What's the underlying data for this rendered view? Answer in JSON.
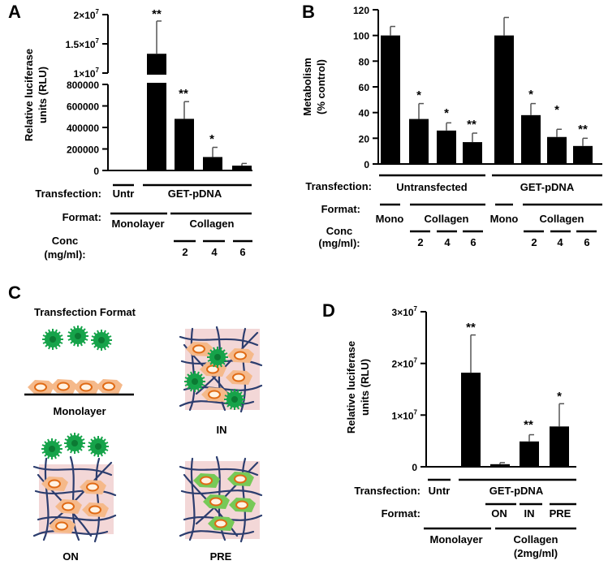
{
  "panels": {
    "A": {
      "letter": "A",
      "ylabel_line1": "Relative luciferase",
      "ylabel_line2": "units (RLU)",
      "upper_ticks": [
        {
          "base": "2×10",
          "exp": "7"
        },
        {
          "base": "1.5×10",
          "exp": "7"
        },
        {
          "base": "1×10",
          "exp": "7"
        }
      ],
      "lower_ticks": [
        "800000",
        "600000",
        "400000",
        "200000",
        "0"
      ],
      "stars": [
        "**",
        "**",
        "*"
      ],
      "rows": {
        "transfection": {
          "label": "Transfection:",
          "untr": "Untr",
          "get": "GET-pDNA"
        },
        "format": {
          "label": "Format:",
          "mono": "Monolayer",
          "coll": "Collagen"
        },
        "conc": {
          "label1": "Conc",
          "label2": "(mg/ml):",
          "values": [
            "2",
            "4",
            "6"
          ]
        }
      }
    },
    "B": {
      "letter": "B",
      "ylabel_line1": "Metabolism",
      "ylabel_line2": "(% control)",
      "ticks": [
        "120",
        "100",
        "80",
        "60",
        "40",
        "20",
        "0"
      ],
      "stars": [
        "*",
        "*",
        "**",
        "*",
        "*",
        "**"
      ],
      "rows": {
        "transfection": {
          "label": "Transfection:",
          "untransfected": "Untransfected",
          "get": "GET-pDNA"
        },
        "format": {
          "label": "Format:",
          "mono1": "Mono",
          "coll1": "Collagen",
          "mono2": "Mono",
          "coll2": "Collagen"
        },
        "conc": {
          "label1": "Conc",
          "label2": "(mg/ml):",
          "values": [
            "2",
            "4",
            "6",
            "2",
            "4",
            "6"
          ]
        }
      }
    },
    "C": {
      "letter": "C",
      "title": "Transfection Format",
      "labels": {
        "monolayer": "Monolayer",
        "in": "IN",
        "on": "ON",
        "pre": "PRE"
      }
    },
    "D": {
      "letter": "D",
      "ylabel_line1": "Relative luciferase",
      "ylabel_line2": "units (RLU)",
      "ticks": [
        {
          "base": "3×10",
          "exp": "7"
        },
        {
          "base": "2×10",
          "exp": "7"
        },
        {
          "base": "1×10",
          "exp": "7"
        },
        {
          "base": "0",
          "exp": ""
        }
      ],
      "stars": [
        "**",
        "**",
        "*"
      ],
      "rows": {
        "transfection": {
          "label": "Transfection:",
          "untr": "Untr",
          "get": "GET-pDNA"
        },
        "format": {
          "label": "Format:",
          "on": "ON",
          "in": "IN",
          "pre": "PRE"
        },
        "culture": {
          "mono": "Monolayer",
          "coll1": "Collagen",
          "coll2": "(2mg/ml)"
        }
      }
    }
  },
  "chart_data": [
    {
      "panel": "A",
      "type": "bar",
      "ylabel": "Relative luciferase units (RLU)",
      "broken_axis": true,
      "ylim_lower": [
        0,
        800000
      ],
      "ylim_upper": [
        10000000,
        20000000
      ],
      "categories": [
        "Untr Monolayer",
        "GET-pDNA Monolayer",
        "GET-pDNA Collagen 2",
        "GET-pDNA Collagen 4",
        "GET-pDNA Collagen 6"
      ],
      "values": [
        0,
        13300000,
        480000,
        125000,
        45000
      ],
      "errors": [
        0,
        5600000,
        160000,
        90000,
        20000
      ],
      "significance": [
        "",
        "**",
        "**",
        "*",
        ""
      ]
    },
    {
      "panel": "B",
      "type": "bar",
      "ylabel": "Metabolism (% control)",
      "ylim": [
        0,
        120
      ],
      "categories": [
        "Untransfected Mono",
        "Untransfected Collagen 2",
        "Untransfected Collagen 4",
        "Untransfected Collagen 6",
        "GET-pDNA Mono",
        "GET-pDNA Collagen 2",
        "GET-pDNA Collagen 4",
        "GET-pDNA Collagen 6"
      ],
      "values": [
        100,
        35,
        26,
        17,
        100,
        38,
        21,
        14
      ],
      "errors": [
        7,
        12,
        6,
        7,
        14,
        9,
        6,
        6
      ],
      "significance": [
        "",
        "*",
        "*",
        "**",
        "",
        "*",
        "*",
        "**"
      ]
    },
    {
      "panel": "D",
      "type": "bar",
      "ylabel": "Relative luciferase units (RLU)",
      "ylim": [
        0,
        30000000
      ],
      "categories": [
        "Untr Monolayer",
        "GET-pDNA Monolayer",
        "GET-pDNA Collagen ON",
        "GET-pDNA Collagen IN",
        "GET-pDNA Collagen PRE"
      ],
      "values": [
        0,
        18200000,
        500000,
        4900000,
        7800000
      ],
      "errors": [
        0,
        7300000,
        300000,
        1300000,
        4400000
      ],
      "significance": [
        "",
        "**",
        "",
        "**",
        "*"
      ]
    }
  ]
}
